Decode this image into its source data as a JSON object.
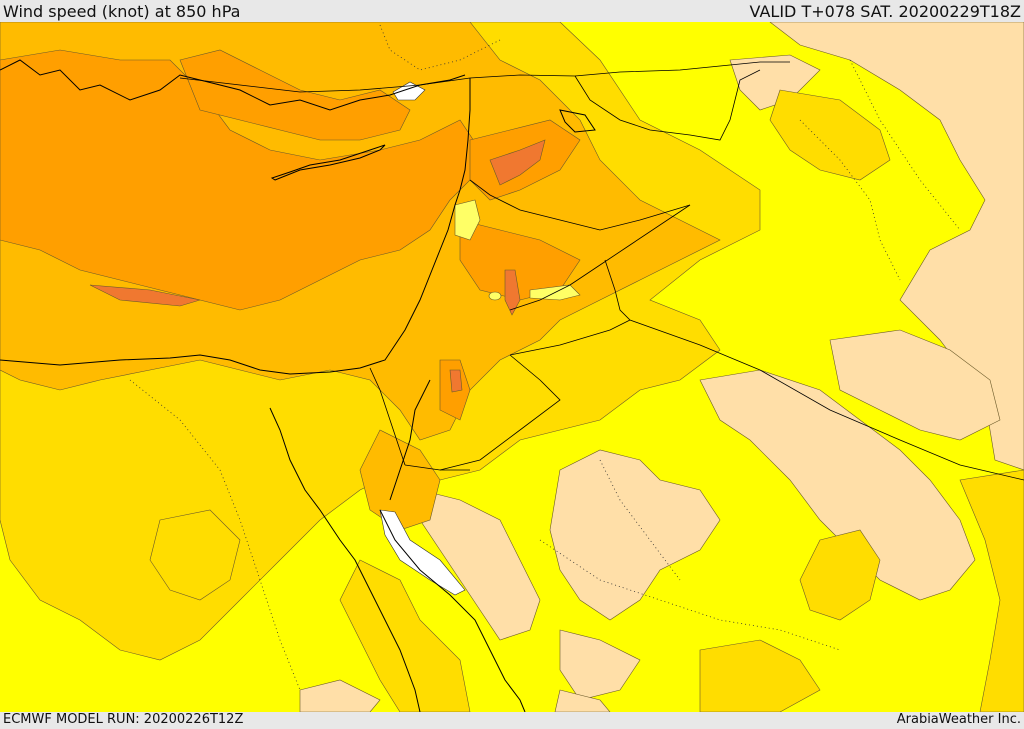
{
  "header": {
    "title": "Wind speed (knot) at 850 hPa",
    "valid_time": "VALID T+078 SAT. 20200229T18Z"
  },
  "footer": {
    "model_run": "ECMWF MODEL RUN: 20200226T12Z",
    "credit": "ArabiaWeather Inc."
  },
  "colors": {
    "background_band": "#ffff00",
    "light_band": "#ffdfa8",
    "mid_band": "#ffdd00",
    "strong_band": "#ffbb00",
    "stronger_band": "#ff9f00",
    "strongest_band": "#f07830",
    "calm_band": "#ffffff",
    "boundaries": "#000000"
  }
}
